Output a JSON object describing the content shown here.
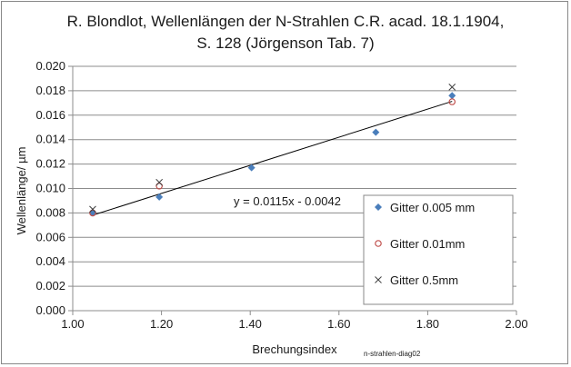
{
  "chart_data": {
    "type": "scatter",
    "title_lines": [
      "R. Blondlot, Wellenlängen der N-Strahlen  C.R. acad. 18.1.1904,",
      "S. 128  (Jörgenson Tab. 7)"
    ],
    "xlabel": "Brechungsindex",
    "ylabel": "Wellenlänge/ µm",
    "xlim": [
      1.0,
      2.0
    ],
    "ylim": [
      0.0,
      0.02
    ],
    "x_ticks": [
      "1.00",
      "1.20",
      "1.40",
      "1.60",
      "1.80",
      "2.00"
    ],
    "y_ticks": [
      "0.000",
      "0.002",
      "0.004",
      "0.006",
      "0.008",
      "0.010",
      "0.012",
      "0.014",
      "0.016",
      "0.018",
      "0.020"
    ],
    "grid": "horizontal",
    "legend_position": "bottom-right",
    "series": [
      {
        "name": "Gitter 0.005 mm",
        "marker": "diamond",
        "color": "#4a7ebb",
        "points": [
          [
            1.045,
            0.008
          ],
          [
            1.195,
            0.0093
          ],
          [
            1.403,
            0.0117
          ],
          [
            1.683,
            0.0146
          ],
          [
            1.855,
            0.0176
          ]
        ]
      },
      {
        "name": "Gitter 0.01mm",
        "marker": "circle",
        "color": "#c0504d",
        "points": [
          [
            1.045,
            0.008
          ],
          [
            1.195,
            0.0102
          ],
          [
            1.855,
            0.0171
          ]
        ]
      },
      {
        "name": "Gitter 0.5mm",
        "marker": "x",
        "color": "#404040",
        "points": [
          [
            1.045,
            0.0083
          ],
          [
            1.195,
            0.0105
          ],
          [
            1.855,
            0.0183
          ]
        ]
      }
    ],
    "trendline": {
      "equation": "y = 0.0115x - 0.0042",
      "slope": 0.0115,
      "intercept": -0.0042,
      "x_range": [
        1.045,
        1.855
      ],
      "color": "#000000"
    },
    "annotation": "n-strahlen-diag02"
  }
}
